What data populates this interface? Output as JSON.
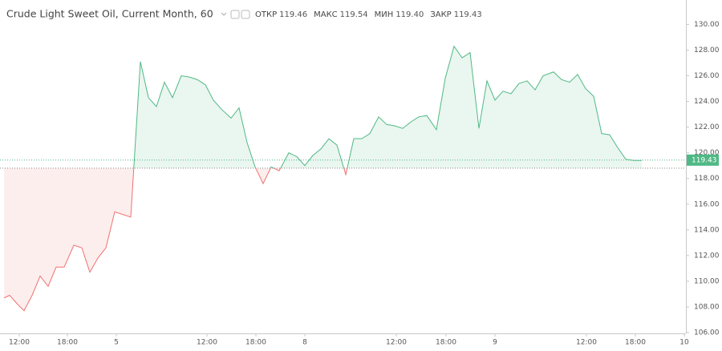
{
  "chart_data": {
    "type": "baseline",
    "title": "Crude Light Sweet Oil, Current Month, 60",
    "stats": [
      {
        "name": "ОТКР",
        "value": 119.46,
        "label": "119.46"
      },
      {
        "name": "МАКС",
        "value": 119.54,
        "label": "119.54"
      },
      {
        "name": "МИН",
        "value": 119.4,
        "label": "119.40"
      },
      {
        "name": "ЗАКР",
        "value": 119.43,
        "label": "119.43"
      }
    ],
    "x": [
      0.5,
      1.2,
      2.2,
      3.0,
      4.0,
      5.0,
      6.0,
      7.0,
      8.0,
      9.2,
      10.2,
      11.2,
      12.2,
      13.2,
      14.3,
      16.3,
      17.5,
      18.5,
      19.5,
      20.5,
      21.5,
      22.6,
      23.6,
      24.6,
      25.6,
      26.6,
      27.6,
      28.8,
      29.8,
      30.8,
      31.8,
      32.8,
      33.8,
      34.8,
      36.0,
      37.0,
      38.0,
      39.0,
      40.0,
      41.0,
      42.0,
      43.1,
      44.1,
      45.1,
      46.1,
      47.2,
      48.2,
      49.2,
      50.2,
      51.2,
      52.2,
      53.2,
      54.4,
      55.5,
      56.6,
      57.6,
      58.6,
      59.7,
      60.7,
      61.7,
      62.7,
      63.7,
      64.7,
      65.7,
      66.7,
      67.7,
      69.0,
      70.0,
      71.0,
      72.0,
      73.0,
      74.0,
      75.0,
      76.0,
      77.0,
      78.0,
      79.0,
      80.0
    ],
    "values": [
      108.7,
      108.9,
      108.2,
      107.7,
      108.9,
      110.4,
      109.6,
      111.1,
      111.1,
      112.8,
      112.6,
      110.7,
      111.8,
      112.6,
      115.4,
      115.0,
      127.1,
      124.3,
      123.6,
      125.5,
      124.3,
      126.0,
      125.9,
      125.7,
      125.3,
      124.1,
      123.4,
      122.7,
      123.5,
      120.8,
      118.9,
      117.6,
      118.9,
      118.6,
      120.0,
      119.7,
      119.0,
      119.8,
      120.3,
      121.1,
      120.6,
      118.3,
      121.1,
      121.1,
      121.5,
      122.8,
      122.2,
      122.1,
      121.9,
      122.4,
      122.8,
      122.9,
      121.8,
      125.8,
      128.3,
      127.4,
      127.8,
      121.9,
      125.6,
      124.1,
      124.8,
      124.6,
      125.4,
      125.6,
      124.9,
      126.0,
      126.3,
      125.7,
      125.5,
      126.1,
      125.0,
      124.4,
      121.5,
      121.4,
      120.4,
      119.5,
      119.4,
      119.4
    ],
    "baseline": 118.8,
    "last": {
      "value": 119.43,
      "label": "119.43"
    },
    "up_color": "#4fb985",
    "down_color": "#f07070",
    "xlim": [
      0,
      85.5
    ],
    "xticks": [
      {
        "value": 2.4,
        "label": "12:00"
      },
      {
        "value": 8.4,
        "label": "18:00"
      },
      {
        "value": 14.5,
        "label": "5"
      },
      {
        "value": 25.8,
        "label": "12:00"
      },
      {
        "value": 31.9,
        "label": "18:00"
      },
      {
        "value": 38.0,
        "label": "8"
      },
      {
        "value": 49.4,
        "label": "12:00"
      },
      {
        "value": 55.6,
        "label": "18:00"
      },
      {
        "value": 61.7,
        "label": "9"
      },
      {
        "value": 73.1,
        "label": "12:00"
      },
      {
        "value": 79.2,
        "label": "18:00"
      },
      {
        "value": 85.3,
        "label": "10"
      }
    ],
    "ylim": [
      106,
      131.9
    ],
    "yticks": [
      {
        "value": 106,
        "label": "106.00"
      },
      {
        "value": 108,
        "label": "108.00"
      },
      {
        "value": 110,
        "label": "110.00"
      },
      {
        "value": 112,
        "label": "112.00"
      },
      {
        "value": 114,
        "label": "114.00"
      },
      {
        "value": 116,
        "label": "116.00"
      },
      {
        "value": 118,
        "label": "118.00"
      },
      {
        "value": 120,
        "label": "120.00"
      },
      {
        "value": 122,
        "label": "122.00"
      },
      {
        "value": 124,
        "label": "124.00"
      },
      {
        "value": 126,
        "label": "126.00"
      },
      {
        "value": 128,
        "label": "128.00"
      },
      {
        "value": 130,
        "label": "130.00"
      }
    ]
  }
}
